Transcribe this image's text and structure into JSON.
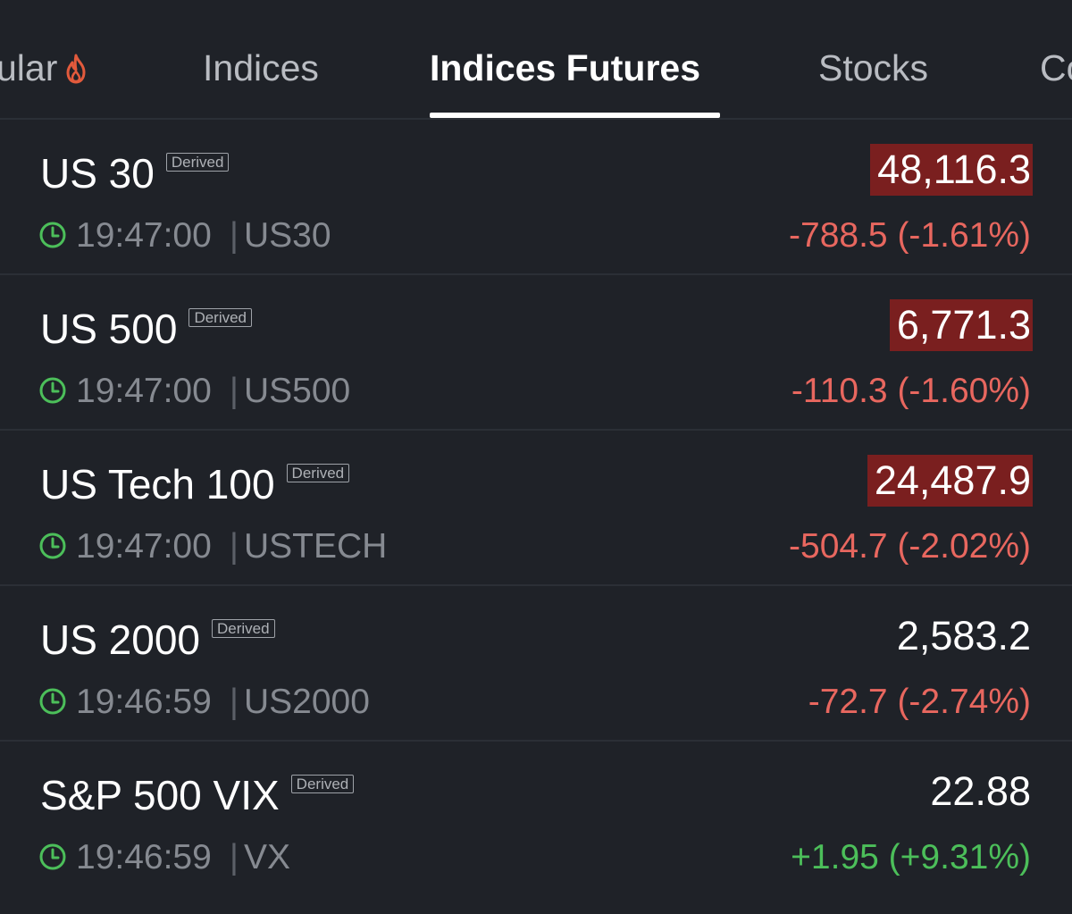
{
  "tabs": [
    {
      "label": "ular",
      "active": false
    },
    {
      "label": "Indices",
      "active": false
    },
    {
      "label": "Indices Futures",
      "active": true
    },
    {
      "label": "Stocks",
      "active": false
    },
    {
      "label": "Co",
      "active": false
    }
  ],
  "colors": {
    "background": "#1f2228",
    "negative": "#e8675f",
    "positive": "#4cbf5a",
    "price_down_highlight": "#7a1f1f",
    "clock_icon": "#4cbf5a",
    "fire_icon": "#e25a3c"
  },
  "icons": {
    "tab_popular": "fire-icon",
    "row_time": "clock-icon"
  },
  "rows": [
    {
      "name": "US 30",
      "badge": "Derived",
      "time": "19:47:00",
      "symbol": "US30",
      "price": "48,116.3",
      "change": "-788.5 (-1.61%)",
      "direction": "down",
      "price_highlight": true
    },
    {
      "name": "US 500",
      "badge": "Derived",
      "time": "19:47:00",
      "symbol": "US500",
      "price": "6,771.3",
      "change": "-110.3 (-1.60%)",
      "direction": "down",
      "price_highlight": true
    },
    {
      "name": "US Tech 100",
      "badge": "Derived",
      "time": "19:47:00",
      "symbol": "USTECH",
      "price": "24,487.9",
      "change": "-504.7 (-2.02%)",
      "direction": "down",
      "price_highlight": true
    },
    {
      "name": "US 2000",
      "badge": "Derived",
      "time": "19:46:59",
      "symbol": "US2000",
      "price": "2,583.2",
      "change": "-72.7 (-2.74%)",
      "direction": "down",
      "price_highlight": false
    },
    {
      "name": "S&P 500 VIX",
      "badge": "Derived",
      "time": "19:46:59",
      "symbol": "VX",
      "price": "22.88",
      "change": "+1.95 (+9.31%)",
      "direction": "up",
      "price_highlight": false
    }
  ]
}
